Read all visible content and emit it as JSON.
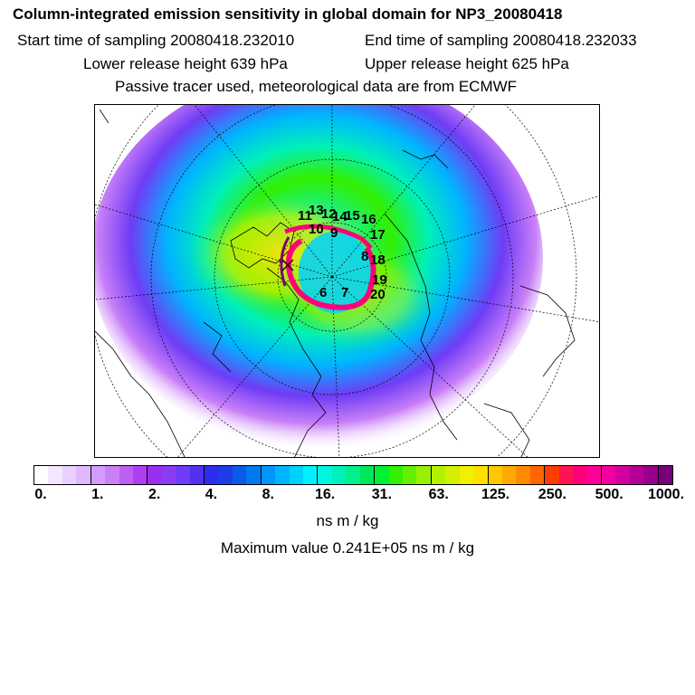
{
  "title": "Column-integrated emission sensitivity in global domain for NP3_20080418",
  "start_time": "Start time of sampling 20080418.232010",
  "end_time": "End time of sampling 20080418.232033",
  "lower_release": "Lower release height  639 hPa",
  "upper_release": "Upper release height  625 hPa",
  "tracer_note": "Passive tracer used, meteorological data are from ECMWF",
  "track_labels": [
    "11",
    "13",
    "12",
    "14",
    "15",
    "16",
    "10",
    "9",
    "17",
    "8",
    "18",
    "19",
    "7",
    "20",
    "6"
  ],
  "colorbar": {
    "colors": [
      "#ffffff",
      "#f4e6ff",
      "#ead0ff",
      "#dfb8ff",
      "#d39cff",
      "#c97ff8",
      "#bd5ff0",
      "#b13df0",
      "#9b2ff0",
      "#8a3cf5",
      "#6f3cf5",
      "#5032f0",
      "#2d2df0",
      "#1e3ce6",
      "#0a5ae6",
      "#0078f0",
      "#0096ff",
      "#00b4ff",
      "#00d2ff",
      "#00f0ff",
      "#00f5e1",
      "#00f0b9",
      "#00f08c",
      "#00e65a",
      "#00f032",
      "#32f000",
      "#64f000",
      "#96f000",
      "#b4f000",
      "#d2f000",
      "#f0f000",
      "#ffe100",
      "#ffc800",
      "#ffaa00",
      "#ff8c00",
      "#ff6400",
      "#ff3c00",
      "#ff1450",
      "#ff0078",
      "#ff0096",
      "#f000a0",
      "#d200a0",
      "#b40096",
      "#96008c",
      "#780078"
    ],
    "ticks": [
      "0.",
      "1.",
      "2.",
      "4.",
      "8.",
      "16.",
      "31.",
      "63.",
      "125.",
      "250.",
      "500.",
      "1000."
    ]
  },
  "units": "ns m / kg",
  "max_value": "Maximum value  0.241E+05 ns m / kg"
}
